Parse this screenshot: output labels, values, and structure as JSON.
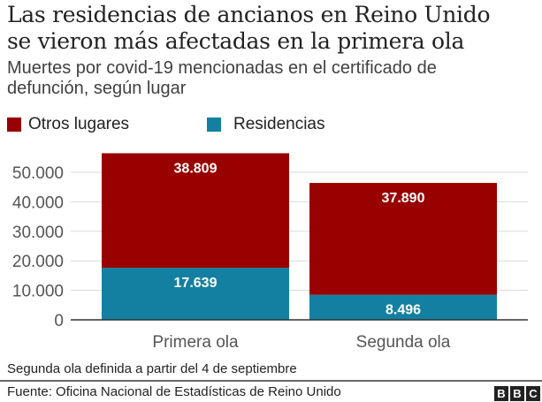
{
  "header": {
    "title_line1": "Las residencias de ancianos en Reino Unido",
    "title_line2": "se vieron más afectadas en la primera ola",
    "subtitle_line1": "Muertes por covid-19 mencionadas en el certificado de",
    "subtitle_line2": "defunción, según lugar"
  },
  "legend": [
    {
      "label": "Otros lugares",
      "color": "#990000"
    },
    {
      "label": "Residencias",
      "color": "#1380A1"
    }
  ],
  "footer": {
    "note": "Segunda ola definida a partir del 4 de septiembre",
    "source": "Fuente: Oficina Nacional de Estadísticas de Reino Unido",
    "logo_letters": [
      "B",
      "B",
      "C"
    ]
  },
  "chart_data": {
    "type": "bar",
    "stacked": true,
    "title": "Las residencias de ancianos en Reino Unido se vieron más afectadas en la primera ola",
    "subtitle": "Muertes por covid-19 mencionadas en el certificado de defunción, según lugar",
    "categories": [
      "Primera ola",
      "Segunda ola"
    ],
    "series": [
      {
        "name": "Residencias",
        "color": "#1380A1",
        "values": [
          17639,
          8496
        ],
        "labels": [
          "17.639",
          "8.496"
        ]
      },
      {
        "name": "Otros lugares",
        "color": "#990000",
        "values": [
          38809,
          37890
        ],
        "labels": [
          "38.809",
          "37.890"
        ]
      }
    ],
    "xlabel": "",
    "ylabel": "",
    "ylim": [
      0,
      50000
    ],
    "yticks": [
      0,
      10000,
      20000,
      30000,
      40000,
      50000
    ],
    "ytick_labels": [
      "0",
      "10.000",
      "20.000",
      "30.000",
      "40.000",
      "50.000"
    ],
    "grid": true,
    "legend_position": "top-left"
  }
}
